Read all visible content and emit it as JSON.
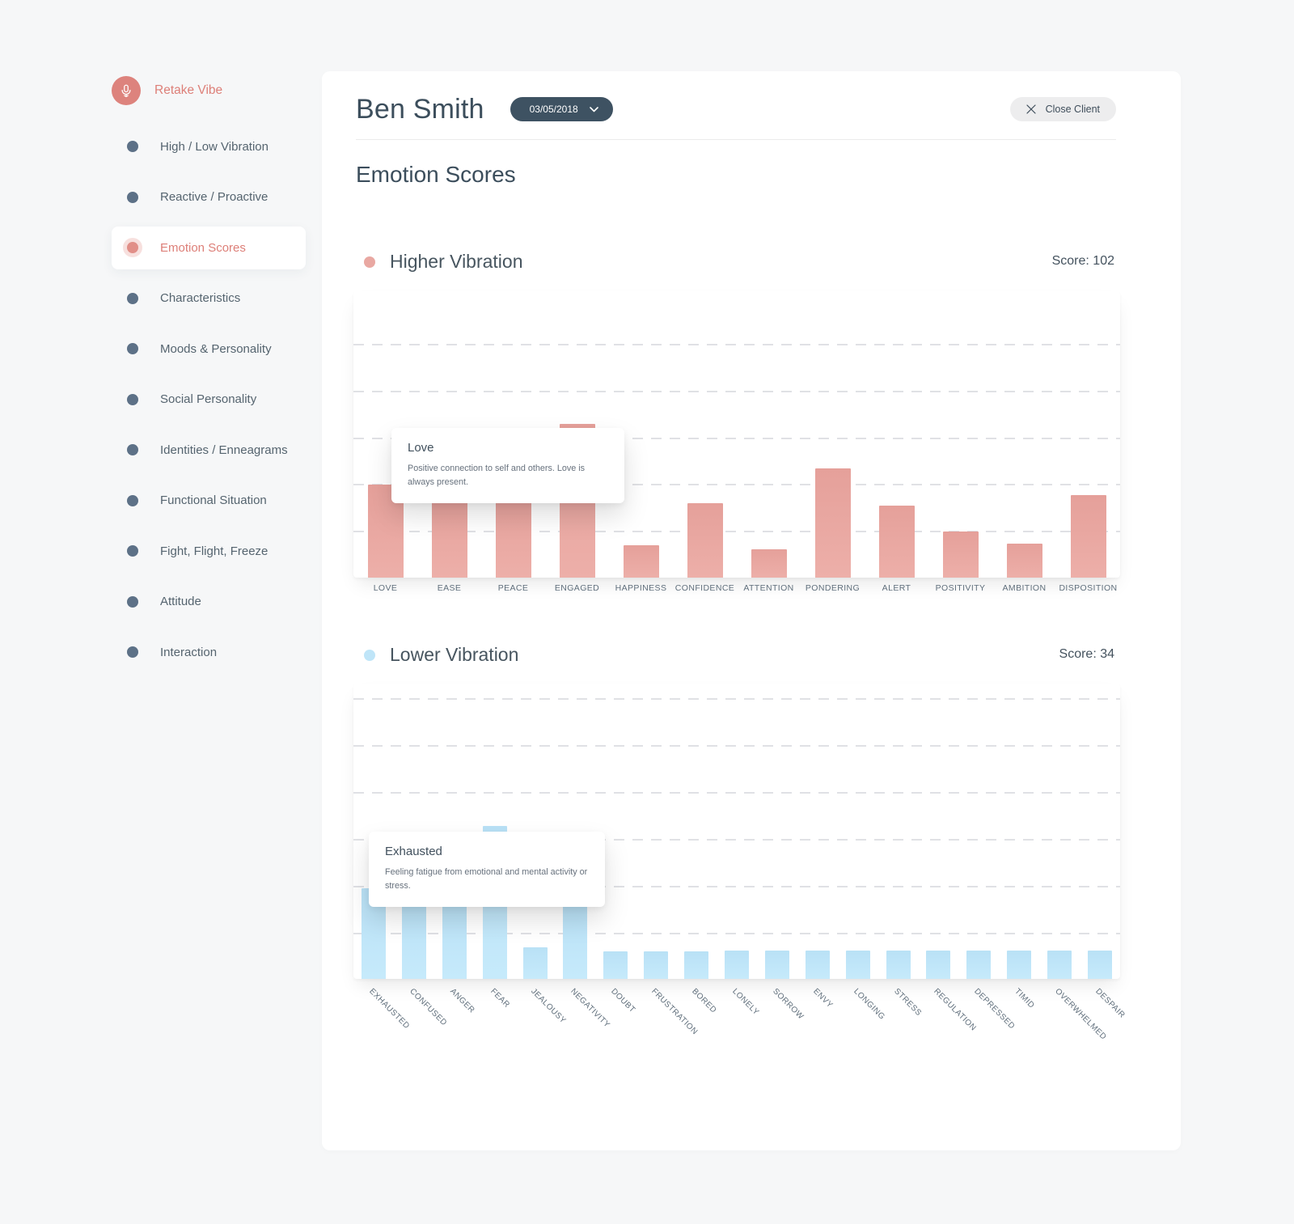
{
  "sidebar": {
    "retake": {
      "label": "Retake Vibe",
      "icon": "microphone-icon"
    },
    "items": [
      {
        "label": "High / Low Vibration",
        "active": false
      },
      {
        "label": "Reactive / Proactive",
        "active": false
      },
      {
        "label": "Emotion Scores",
        "active": true
      },
      {
        "label": "Characteristics",
        "active": false
      },
      {
        "label": "Moods & Personality",
        "active": false
      },
      {
        "label": "Social Personality",
        "active": false
      },
      {
        "label": "Identities / Enneagrams",
        "active": false
      },
      {
        "label": "Functional Situation",
        "active": false
      },
      {
        "label": "Fight, Flight, Freeze",
        "active": false
      },
      {
        "label": "Attitude",
        "active": false
      },
      {
        "label": "Interaction",
        "active": false
      }
    ]
  },
  "header": {
    "client_name": "Ben Smith",
    "date_value": "03/05/2018",
    "close_button_label": "Close Client"
  },
  "page_title": "Emotion Scores",
  "colors": {
    "accent_salmon": "#dd837d",
    "salmon_bar": "#e6a19b",
    "blue_bar": "#bde4f8",
    "sidebar_dot": "#5d7187",
    "text_dark": "#3c4e5c",
    "text_muted": "#5f6e7b",
    "date_pill_bg": "#3e5262"
  },
  "chart_data": [
    {
      "type": "bar",
      "title": "Higher Vibration",
      "score": 102,
      "score_label": "Score: 102",
      "legend_dot_color": "#e9a8a2",
      "bar_color": "#e6a19b",
      "categories": [
        "LOVE",
        "EASE",
        "PEACE",
        "ENGAGED",
        "HAPPINESS",
        "CONFIDENCE",
        "ATTENTION",
        "PONDERING",
        "ALERT",
        "POSITIVITY",
        "AMBITION",
        "DISPOSITION"
      ],
      "values_pct_of_plot_height": [
        32.5,
        30.8,
        30.8,
        53.7,
        11.3,
        26.0,
        9.9,
        38.1,
        25.1,
        16.1,
        11.9,
        28.8
      ],
      "y_axis_labels_shown": false,
      "gridlines": "horizontal-dashed",
      "gridline_count": 5,
      "tooltip": {
        "title": "Love",
        "body": "Positive connection to self and others. Love is always present."
      }
    },
    {
      "type": "bar",
      "title": "Lower Vibration",
      "score": 34,
      "score_label": "Score: 34",
      "legend_dot_color": "#bfe5f8",
      "bar_color": "#bde4f8",
      "categories": [
        "EXHAUSTED",
        "CONFUSED",
        "ANGER",
        "FEAR",
        "JEALOUSY",
        "NEGATIVITY",
        "DOUBT",
        "FRUSTRATION",
        "BORED",
        "LONELY",
        "SORROW",
        "ENVY",
        "LONGING",
        "STRESS",
        "REGULATION",
        "DEPRESSED",
        "TIMID",
        "OVERWHELMED",
        "DESPAIR"
      ],
      "values_pct_of_plot_height": [
        30.7,
        27.1,
        26.6,
        51.8,
        10.7,
        24.9,
        9.3,
        9.3,
        9.3,
        9.6,
        9.6,
        9.6,
        9.6,
        9.6,
        9.6,
        9.6,
        9.6,
        9.6,
        9.6
      ],
      "y_axis_labels_shown": false,
      "gridlines": "horizontal-dashed",
      "gridline_count": 6,
      "tooltip": {
        "title": "Exhausted",
        "body": "Feeling fatigue from emotional and mental activity or stress."
      }
    }
  ]
}
